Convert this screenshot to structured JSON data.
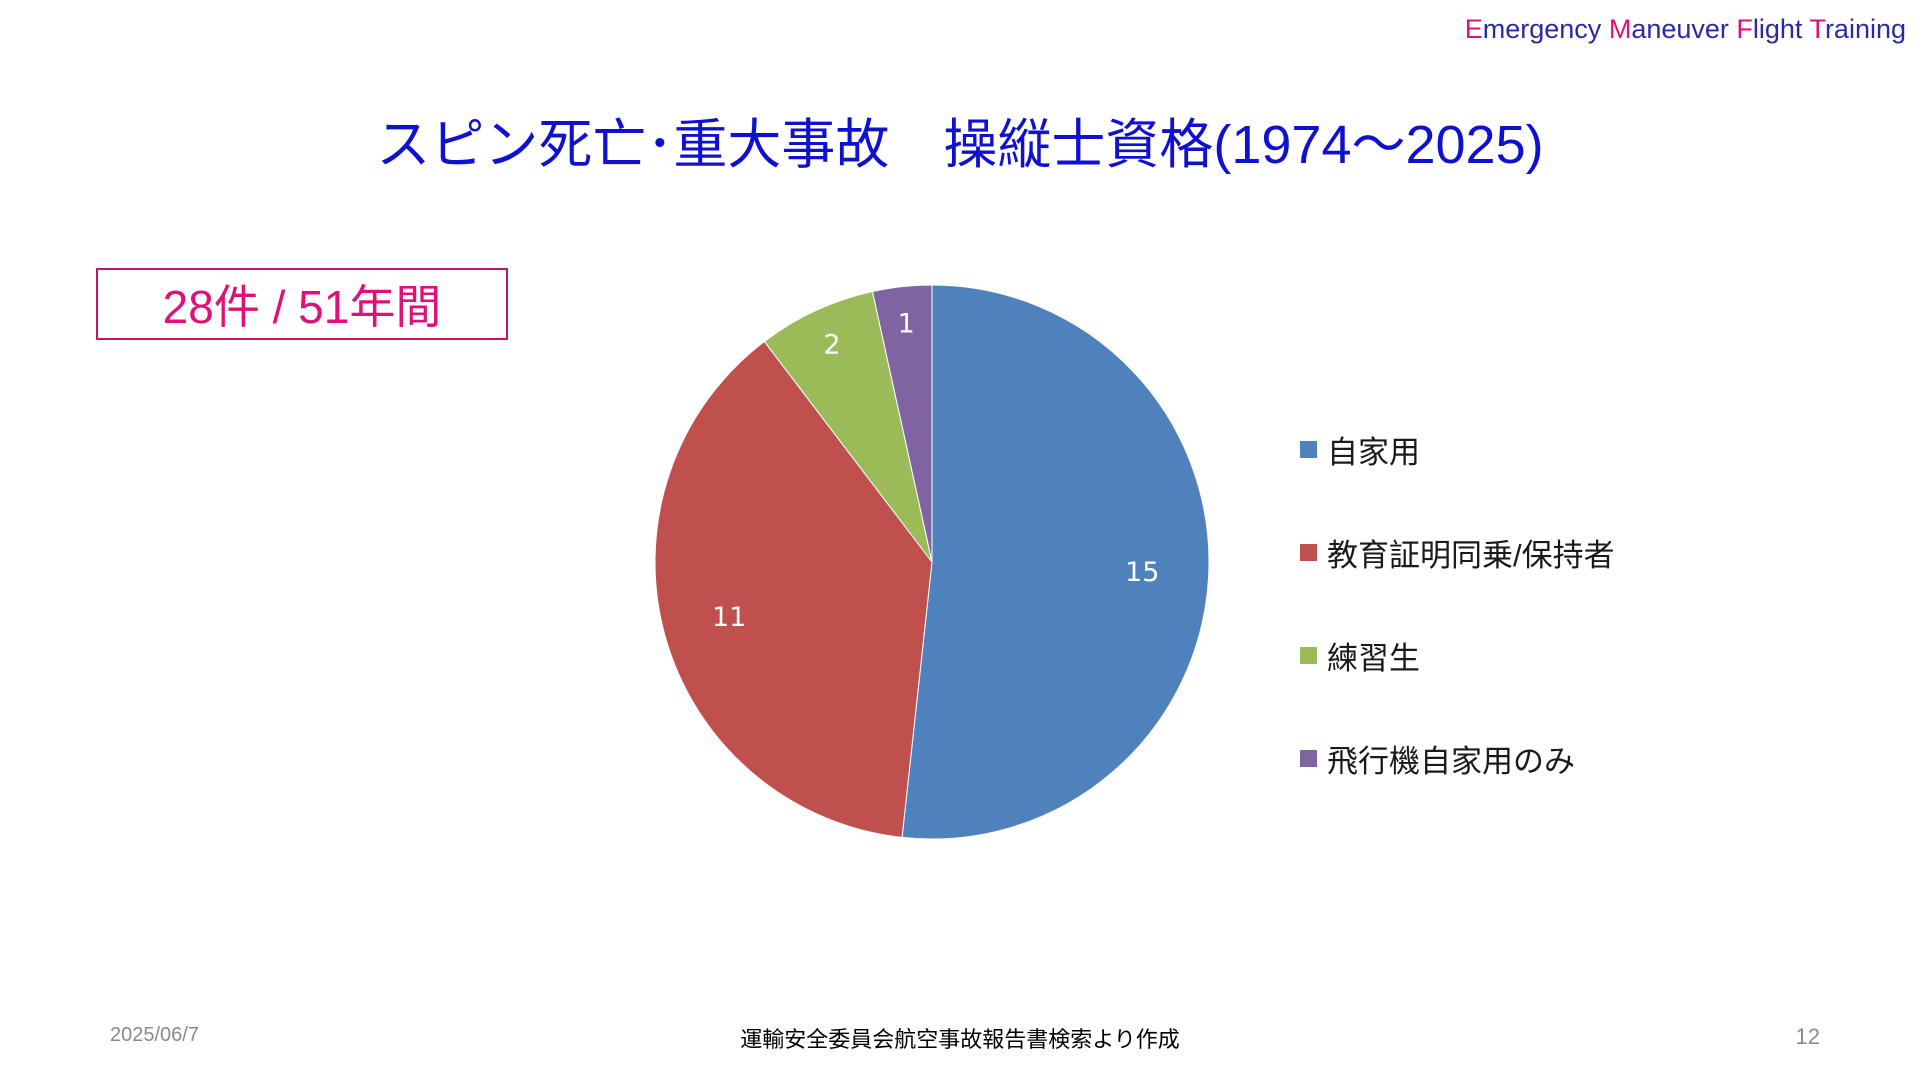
{
  "header": {
    "brand_parts": [
      {
        "cap": "E",
        "rest": "mergency "
      },
      {
        "cap": "M",
        "rest": "aneuver "
      },
      {
        "cap": "F",
        "rest": "light "
      },
      {
        "cap": "T",
        "rest": "raining"
      }
    ]
  },
  "slide": {
    "title": "スピン死亡･重大事故　操縦士資格(1974～2025)",
    "count_label": "28件 / 51年間"
  },
  "chart_data": {
    "type": "pie",
    "start_angle": "12 o'clock",
    "direction": "clockwise",
    "legend_position": "right",
    "categories": [
      "自家用",
      "教育証明同乗/保持者",
      "練習生",
      "飛行機自家用のみ"
    ],
    "values": [
      15,
      11,
      2,
      1
    ],
    "colors": [
      "#4f81bd",
      "#c0504d",
      "#9bbb59",
      "#8064a2"
    ]
  },
  "footer": {
    "date": "2025/06/7",
    "source": "運輸安全委員会航空事故報告書検索より作成",
    "page": "12"
  }
}
